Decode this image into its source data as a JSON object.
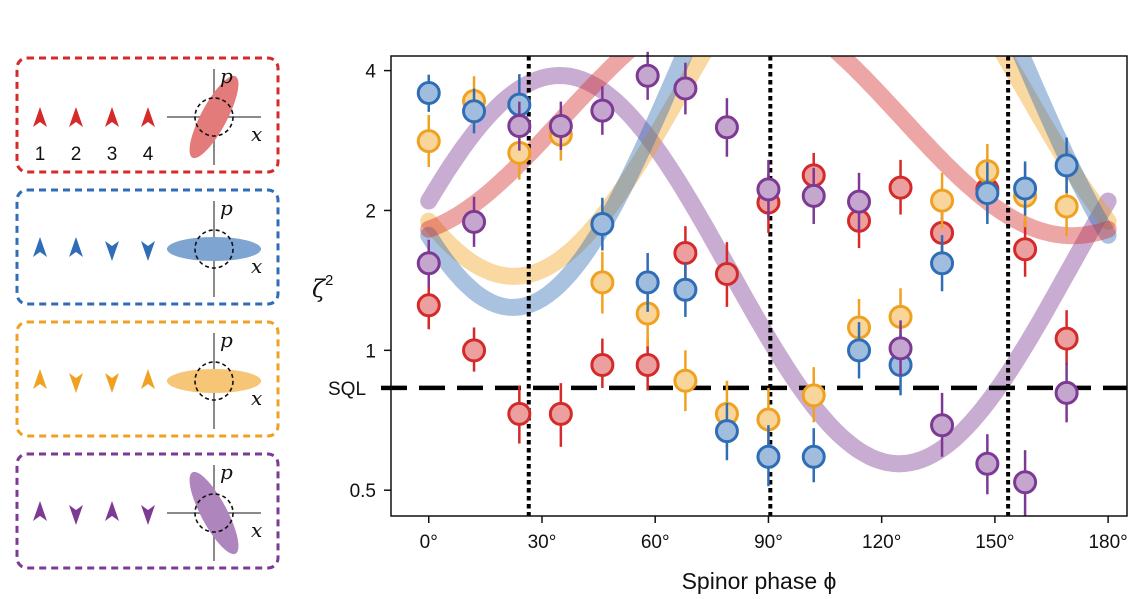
{
  "colors": {
    "red": "#d42a2a",
    "blue": "#2f6db6",
    "orange": "#f0a121",
    "purple": "#7d3a94"
  },
  "panels": [
    {
      "color_key": "red",
      "spins": [
        "up",
        "up",
        "up",
        "up"
      ],
      "tilt_deg": -62,
      "ellipse": "squeezed-tilted"
    },
    {
      "color_key": "blue",
      "spins": [
        "up",
        "up",
        "down",
        "down"
      ],
      "tilt_deg": 0,
      "ellipse": "squeezed-p"
    },
    {
      "color_key": "orange",
      "spins": [
        "up",
        "down",
        "down",
        "up"
      ],
      "tilt_deg": 0,
      "ellipse": "squeezed-p"
    },
    {
      "color_key": "purple",
      "spins": [
        "up",
        "down",
        "up",
        "down"
      ],
      "tilt_deg": 62,
      "ellipse": "squeezed-tilted"
    }
  ],
  "spin_numbers": [
    "1",
    "2",
    "3",
    "4"
  ],
  "phase_axis_labels": {
    "p": "p",
    "x": "x"
  },
  "chart_data": {
    "type": "scatter",
    "xlabel": "Spinor phase ϕ",
    "ylabel": "ζ",
    "ylabel_sup": "2",
    "xlim": [
      -10,
      185
    ],
    "ylim": [
      0.44,
      4.3
    ],
    "yscale": "log",
    "x_ticks": [
      0,
      30,
      60,
      90,
      120,
      150,
      180
    ],
    "x_tick_labels": [
      "0°",
      "30°",
      "60°",
      "90°",
      "120°",
      "150°",
      "180°"
    ],
    "y_ticks": [
      0.5,
      1,
      2,
      4
    ],
    "y_tick_labels": [
      "0.5",
      "1",
      "2",
      "4"
    ],
    "sql_level": 0.83,
    "sql_label": "SQL",
    "vlines": [
      26.5,
      90.5,
      153.5
    ],
    "series": [
      {
        "name": "red",
        "color_key": "red",
        "points": [
          [
            0,
            1.25,
            1.11,
            1.4
          ],
          [
            12,
            1.0,
            0.9,
            1.12
          ],
          [
            24,
            0.73,
            0.63,
            0.84
          ],
          [
            35,
            0.73,
            0.62,
            0.85
          ],
          [
            46,
            0.93,
            0.83,
            1.06
          ],
          [
            58,
            0.93,
            0.82,
            1.06
          ],
          [
            68,
            1.62,
            1.42,
            1.85
          ],
          [
            79,
            1.46,
            1.24,
            1.71
          ],
          [
            90,
            2.08,
            1.79,
            2.4
          ],
          [
            102,
            2.38,
            2.12,
            2.66
          ],
          [
            114,
            1.9,
            1.66,
            2.17
          ],
          [
            125,
            2.24,
            1.96,
            2.57
          ],
          [
            136,
            1.79,
            1.56,
            2.05
          ],
          [
            148,
            2.22,
            1.94,
            2.52
          ],
          [
            158,
            1.65,
            1.44,
            1.9
          ],
          [
            169,
            1.06,
            0.93,
            1.22
          ]
        ],
        "fit": {
          "A": -0.55,
          "B": 0.19,
          "C": 1.15
        }
      },
      {
        "name": "blue",
        "color_key": "blue",
        "points": [
          [
            0,
            3.58,
            3.26,
            3.92
          ],
          [
            12,
            3.27,
            2.93,
            3.66
          ],
          [
            24,
            3.38,
            2.91,
            3.93
          ],
          [
            46,
            1.87,
            1.64,
            2.13
          ],
          [
            58,
            1.4,
            1.21,
            1.62
          ],
          [
            68,
            1.35,
            1.18,
            1.54
          ],
          [
            79,
            0.67,
            0.58,
            0.77
          ],
          [
            90,
            0.59,
            0.51,
            0.69
          ],
          [
            102,
            0.59,
            0.52,
            0.68
          ],
          [
            114,
            1.0,
            0.87,
            1.15
          ],
          [
            125,
            0.93,
            0.8,
            1.08
          ],
          [
            136,
            1.54,
            1.34,
            1.77
          ],
          [
            148,
            2.18,
            1.87,
            2.54
          ],
          [
            158,
            2.23,
            1.95,
            2.55
          ],
          [
            169,
            2.5,
            2.18,
            2.87
          ]
        ],
        "fit": {
          "A": -0.88,
          "B": -0.87,
          "C": 1.45
        }
      },
      {
        "name": "orange",
        "color_key": "orange",
        "points": [
          [
            0,
            2.82,
            2.48,
            3.21
          ],
          [
            12,
            3.44,
            3.04,
            3.89
          ],
          [
            24,
            2.66,
            2.33,
            3.03
          ],
          [
            35,
            2.91,
            2.56,
            3.31
          ],
          [
            46,
            1.4,
            1.2,
            1.63
          ],
          [
            58,
            1.2,
            1.02,
            1.41
          ],
          [
            68,
            0.86,
            0.74,
            1.0
          ],
          [
            79,
            0.73,
            0.62,
            0.86
          ],
          [
            90,
            0.71,
            0.61,
            0.83
          ],
          [
            102,
            0.8,
            0.7,
            0.92
          ],
          [
            114,
            1.12,
            0.97,
            1.29
          ],
          [
            125,
            1.18,
            1.02,
            1.36
          ],
          [
            136,
            2.1,
            1.83,
            2.41
          ],
          [
            148,
            2.43,
            2.12,
            2.78
          ],
          [
            158,
            2.15,
            1.84,
            2.51
          ],
          [
            169,
            2.04,
            1.76,
            2.36
          ]
        ],
        "fit": {
          "A": -0.66,
          "B": -0.66,
          "C": 1.3
        }
      },
      {
        "name": "purple",
        "color_key": "purple",
        "points": [
          [
            0,
            1.54,
            1.37,
            1.73
          ],
          [
            12,
            1.89,
            1.67,
            2.14
          ],
          [
            24,
            3.04,
            2.69,
            3.43
          ],
          [
            35,
            3.04,
            2.7,
            3.43
          ],
          [
            46,
            3.28,
            2.91,
            3.7
          ],
          [
            58,
            3.9,
            3.46,
            4.39
          ],
          [
            68,
            3.66,
            3.22,
            4.16
          ],
          [
            79,
            3.02,
            2.61,
            3.49
          ],
          [
            90,
            2.22,
            1.92,
            2.57
          ],
          [
            102,
            2.15,
            1.87,
            2.47
          ],
          [
            114,
            2.09,
            1.81,
            2.41
          ],
          [
            125,
            1.01,
            0.88,
            1.16
          ],
          [
            136,
            0.69,
            0.59,
            0.81
          ],
          [
            148,
            0.57,
            0.49,
            0.66
          ],
          [
            158,
            0.52,
            0.44,
            0.61
          ],
          [
            169,
            0.81,
            0.7,
            0.94
          ]
        ],
        "fit": {
          "A": 0.34,
          "B": 0.9,
          "C": 0.4
        }
      }
    ]
  }
}
